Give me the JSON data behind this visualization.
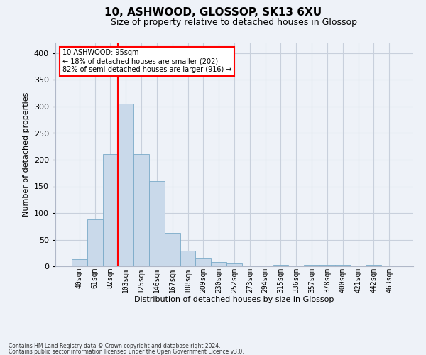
{
  "title1": "10, ASHWOOD, GLOSSOP, SK13 6XU",
  "title2": "Size of property relative to detached houses in Glossop",
  "xlabel": "Distribution of detached houses by size in Glossop",
  "ylabel": "Number of detached properties",
  "footnote1": "Contains HM Land Registry data © Crown copyright and database right 2024.",
  "footnote2": "Contains public sector information licensed under the Open Government Licence v3.0.",
  "bin_labels": [
    "40sqm",
    "61sqm",
    "82sqm",
    "103sqm",
    "125sqm",
    "146sqm",
    "167sqm",
    "188sqm",
    "209sqm",
    "230sqm",
    "252sqm",
    "273sqm",
    "294sqm",
    "315sqm",
    "336sqm",
    "357sqm",
    "378sqm",
    "400sqm",
    "421sqm",
    "442sqm",
    "463sqm"
  ],
  "bar_heights": [
    13,
    88,
    211,
    305,
    211,
    160,
    63,
    30,
    15,
    8,
    5,
    2,
    1,
    3,
    2,
    3,
    3,
    3,
    1,
    3,
    2
  ],
  "bar_color": "#c9d9ea",
  "bar_edge_color": "#7aaac8",
  "grid_color": "#c8d0dc",
  "vline_color": "red",
  "vline_x_index": 2,
  "annotation_text": "10 ASHWOOD: 95sqm\n← 18% of detached houses are smaller (202)\n82% of semi-detached houses are larger (916) →",
  "annotation_box_color": "white",
  "annotation_box_edge_color": "red",
  "ylim": [
    0,
    420
  ],
  "yticks": [
    0,
    50,
    100,
    150,
    200,
    250,
    300,
    350,
    400
  ],
  "bg_color": "#eef2f8",
  "title1_fontsize": 11,
  "title2_fontsize": 9,
  "ylabel_fontsize": 8,
  "xlabel_fontsize": 8,
  "tick_fontsize": 7,
  "footnote_fontsize": 5.5
}
